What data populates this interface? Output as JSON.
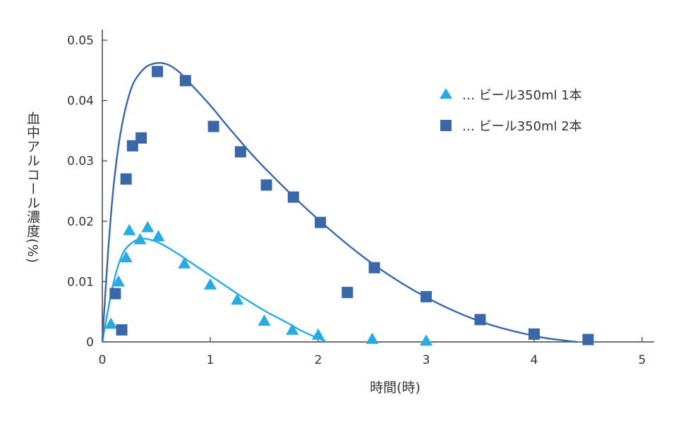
{
  "chart_data": {
    "type": "scatter",
    "xlabel": "時間(時)",
    "ylabel": "血中アルコール濃度(%)",
    "xlim": [
      0,
      5
    ],
    "ylim": [
      0,
      0.05
    ],
    "xticks": [
      "0",
      "1",
      "2",
      "3",
      "4",
      "5"
    ],
    "yticks": [
      "0",
      "0.01",
      "0.02",
      "0.03",
      "0.04",
      "0.05"
    ],
    "legend_position": "top-right",
    "series": [
      {
        "name": "… ビール350ml 1本",
        "marker": "triangle",
        "color": "#29abe2",
        "points": [
          [
            0.08,
            0.003
          ],
          [
            0.15,
            0.01
          ],
          [
            0.22,
            0.014
          ],
          [
            0.25,
            0.0185
          ],
          [
            0.35,
            0.017
          ],
          [
            0.42,
            0.019
          ],
          [
            0.52,
            0.0175
          ],
          [
            0.76,
            0.013
          ],
          [
            1.0,
            0.0095
          ],
          [
            1.25,
            0.007
          ],
          [
            1.5,
            0.0035
          ],
          [
            1.76,
            0.002
          ],
          [
            2.0,
            0.0012
          ],
          [
            2.5,
            0.0005
          ],
          [
            3.0,
            0.0002
          ]
        ],
        "curve": [
          [
            0,
            0
          ],
          [
            0.05,
            0.005
          ],
          [
            0.1,
            0.0095
          ],
          [
            0.15,
            0.0128
          ],
          [
            0.2,
            0.015
          ],
          [
            0.28,
            0.0165
          ],
          [
            0.36,
            0.0171
          ],
          [
            0.45,
            0.0169
          ],
          [
            0.55,
            0.0162
          ],
          [
            0.7,
            0.0146
          ],
          [
            0.9,
            0.0122
          ],
          [
            1.1,
            0.0098
          ],
          [
            1.3,
            0.0074
          ],
          [
            1.5,
            0.0052
          ],
          [
            1.7,
            0.0033
          ],
          [
            1.85,
            0.0018
          ],
          [
            2.0,
            0.0006
          ],
          [
            2.08,
            0.0
          ]
        ]
      },
      {
        "name": "… ビール350ml 2本",
        "marker": "square",
        "color": "#3a67a8",
        "points": [
          [
            0.12,
            0.008
          ],
          [
            0.18,
            0.002
          ],
          [
            0.22,
            0.027
          ],
          [
            0.28,
            0.0325
          ],
          [
            0.36,
            0.0338
          ],
          [
            0.51,
            0.0448
          ],
          [
            0.77,
            0.0433
          ],
          [
            1.03,
            0.0357
          ],
          [
            1.28,
            0.0315
          ],
          [
            1.52,
            0.026
          ],
          [
            1.77,
            0.024
          ],
          [
            2.02,
            0.0198
          ],
          [
            2.27,
            0.0082
          ],
          [
            2.52,
            0.0123
          ],
          [
            3.0,
            0.0075
          ],
          [
            3.5,
            0.0037
          ],
          [
            4.0,
            0.0013
          ],
          [
            4.5,
            0.0004
          ]
        ],
        "curve": [
          [
            0,
            0
          ],
          [
            0.05,
            0.014
          ],
          [
            0.1,
            0.025
          ],
          [
            0.15,
            0.0325
          ],
          [
            0.2,
            0.0375
          ],
          [
            0.25,
            0.041
          ],
          [
            0.3,
            0.0433
          ],
          [
            0.4,
            0.0455
          ],
          [
            0.5,
            0.0462
          ],
          [
            0.6,
            0.046
          ],
          [
            0.7,
            0.0449
          ],
          [
            0.8,
            0.0431
          ],
          [
            1.0,
            0.0392
          ],
          [
            1.2,
            0.0349
          ],
          [
            1.5,
            0.0289
          ],
          [
            2.0,
            0.0203
          ],
          [
            2.5,
            0.013
          ],
          [
            3.0,
            0.0074
          ],
          [
            3.5,
            0.0034
          ],
          [
            4.0,
            0.001
          ],
          [
            4.3,
            0.0002
          ],
          [
            4.4,
            0.0
          ]
        ]
      }
    ]
  }
}
